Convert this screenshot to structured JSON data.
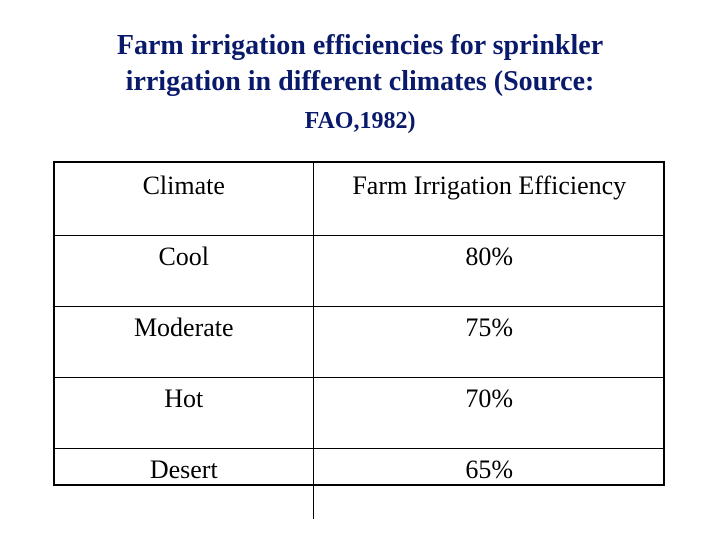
{
  "title": {
    "line1": "Farm irrigation efficiencies for sprinkler",
    "line2": "irrigation in different climates (Source:",
    "line3": "FAO,1982)"
  },
  "table": {
    "headers": [
      "Climate",
      "Farm Irrigation Efficiency"
    ],
    "rows": [
      [
        "Cool",
        "80%"
      ],
      [
        "Moderate",
        "75%"
      ],
      [
        "Hot",
        "70%"
      ],
      [
        "Desert",
        "65%"
      ]
    ]
  },
  "colors": {
    "title": "#0a1a6b",
    "text": "#000000",
    "border": "#000000",
    "background": "#ffffff"
  }
}
